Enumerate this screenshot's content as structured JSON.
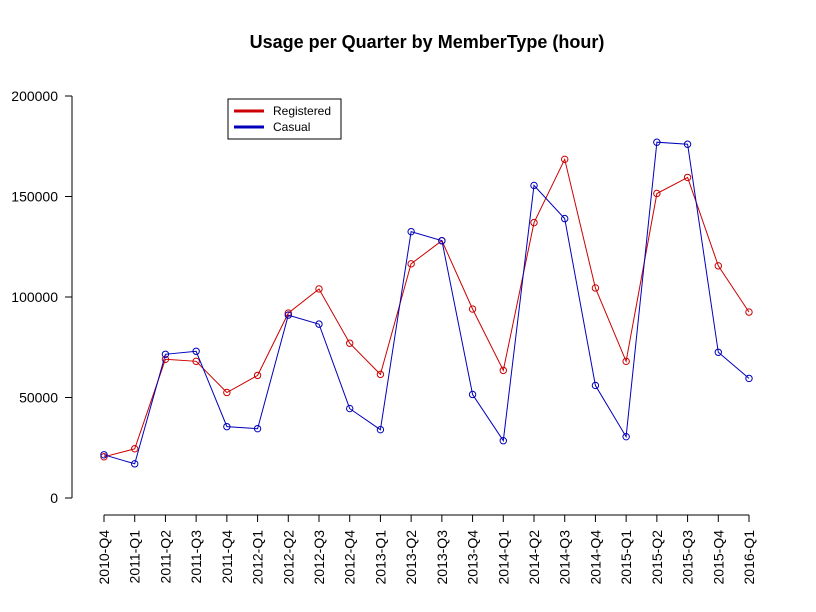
{
  "chart_data": {
    "type": "line",
    "title": "Usage per Quarter by MemberType (hour)",
    "xlabel": "",
    "ylabel": "",
    "ylim": [
      0,
      200000
    ],
    "yticks": [
      "0",
      "50000",
      "100000",
      "150000",
      "200000"
    ],
    "categories": [
      "2010-Q4",
      "2011-Q1",
      "2011-Q2",
      "2011-Q3",
      "2011-Q4",
      "2012-Q1",
      "2012-Q2",
      "2012-Q3",
      "2012-Q4",
      "2013-Q1",
      "2013-Q2",
      "2013-Q3",
      "2013-Q4",
      "2014-Q1",
      "2014-Q2",
      "2014-Q3",
      "2014-Q4",
      "2015-Q1",
      "2015-Q2",
      "2015-Q3",
      "2015-Q4",
      "2016-Q1"
    ],
    "series": [
      {
        "name": "Registered",
        "color": "#cc0000",
        "values": [
          20500,
          24500,
          69000,
          68000,
          52500,
          61000,
          92000,
          104000,
          77000,
          61500,
          116500,
          128000,
          94000,
          63500,
          137000,
          168500,
          104500,
          68000,
          151500,
          159500,
          115500,
          92500
        ]
      },
      {
        "name": "Casual",
        "color": "#0000bb",
        "values": [
          21500,
          17000,
          71500,
          73000,
          35500,
          34500,
          91000,
          86500,
          44500,
          34000,
          132500,
          128000,
          51500,
          28500,
          155500,
          139000,
          56000,
          30500,
          177000,
          176000,
          72500,
          59500
        ]
      }
    ],
    "grid": false,
    "legend_position": "top-left"
  }
}
